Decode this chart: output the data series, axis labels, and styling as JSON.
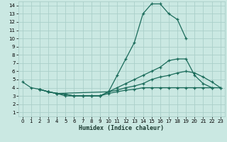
{
  "xlabel": "Humidex (Indice chaleur)",
  "xlim": [
    -0.5,
    23.5
  ],
  "ylim": [
    0.5,
    14.5
  ],
  "xticks": [
    0,
    1,
    2,
    3,
    4,
    5,
    6,
    7,
    8,
    9,
    10,
    11,
    12,
    13,
    14,
    15,
    16,
    17,
    18,
    19,
    20,
    21,
    22,
    23
  ],
  "yticks": [
    1,
    2,
    3,
    4,
    5,
    6,
    7,
    8,
    9,
    10,
    11,
    12,
    13,
    14
  ],
  "bg_color": "#cae8e2",
  "grid_color": "#aacfc9",
  "line_color": "#1a6b5a",
  "lines": [
    {
      "x": [
        0,
        1,
        2,
        3,
        4,
        10,
        11,
        12,
        13,
        14,
        15,
        16,
        17,
        18,
        19
      ],
      "y": [
        4.7,
        4.0,
        3.8,
        3.5,
        3.3,
        3.5,
        5.5,
        7.5,
        9.5,
        13.0,
        14.2,
        14.2,
        13.0,
        12.3,
        10.0
      ]
    },
    {
      "x": [
        2,
        3,
        4,
        5,
        6,
        7,
        8,
        9,
        10,
        11,
        12,
        13,
        14,
        15,
        16,
        17,
        18,
        19,
        20,
        21,
        22,
        23
      ],
      "y": [
        3.8,
        3.5,
        3.3,
        3.2,
        3.0,
        3.0,
        3.0,
        3.0,
        3.5,
        4.0,
        4.5,
        5.0,
        5.5,
        6.0,
        6.5,
        7.3,
        7.5,
        7.5,
        5.5,
        4.5,
        4.0,
        null
      ]
    },
    {
      "x": [
        2,
        3,
        4,
        5,
        6,
        7,
        8,
        9,
        10,
        11,
        12,
        13,
        14,
        15,
        16,
        17,
        18,
        19,
        20,
        21,
        22,
        23
      ],
      "y": [
        3.8,
        3.5,
        3.3,
        3.0,
        3.0,
        3.0,
        3.0,
        3.0,
        3.5,
        3.7,
        4.0,
        4.2,
        4.5,
        5.0,
        5.3,
        5.5,
        5.8,
        6.0,
        5.8,
        5.3,
        4.7,
        4.0
      ]
    },
    {
      "x": [
        2,
        3,
        4,
        5,
        6,
        7,
        8,
        9,
        10,
        11,
        12,
        13,
        14,
        15,
        16,
        17,
        18,
        19,
        20,
        21,
        22,
        23
      ],
      "y": [
        3.8,
        3.5,
        3.3,
        3.2,
        3.0,
        3.0,
        3.0,
        3.0,
        3.3,
        3.5,
        3.7,
        3.8,
        4.0,
        4.0,
        4.0,
        4.0,
        4.0,
        4.0,
        4.0,
        4.0,
        4.0,
        4.0
      ]
    }
  ]
}
